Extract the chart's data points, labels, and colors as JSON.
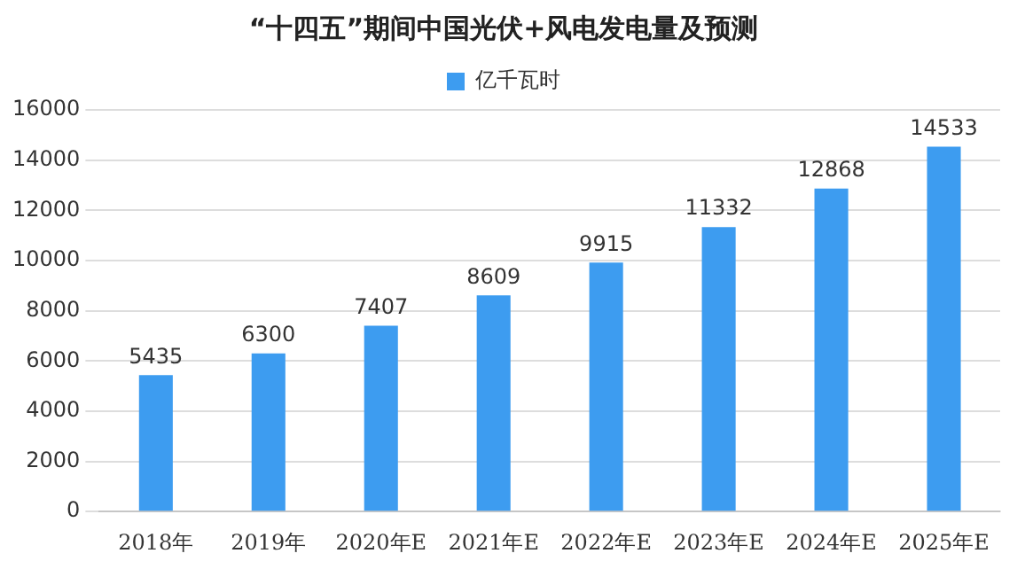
{
  "chart_data": {
    "type": "bar",
    "title": "“十四五”期间中国光伏+风电发电量及预测",
    "categories": [
      "2018年",
      "2019年",
      "2020年E",
      "2021年E",
      "2022年E",
      "2023年E",
      "2024年E",
      "2025年E"
    ],
    "series": [
      {
        "name": "亿千瓦时",
        "color": "#3d9cf0",
        "values": [
          5435,
          6300,
          7407,
          8609,
          9915,
          11332,
          12868,
          14533
        ]
      }
    ],
    "ylim": [
      0,
      16000
    ],
    "yticks": [
      0,
      2000,
      4000,
      6000,
      8000,
      10000,
      12000,
      14000,
      16000
    ],
    "grid": "y",
    "legend": "top",
    "data_labels": true
  }
}
